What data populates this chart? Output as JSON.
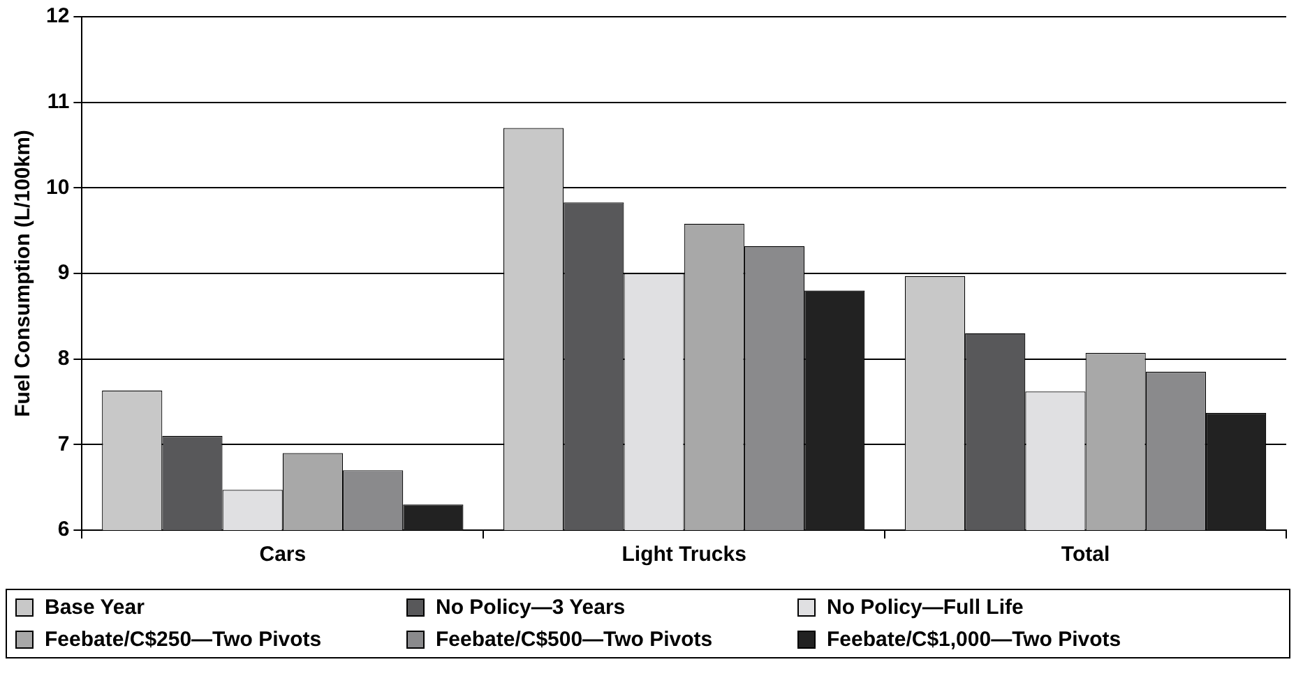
{
  "chart_data": {
    "type": "bar",
    "ylabel": "Fuel Consumption (L/100km)",
    "categories": [
      "Cars",
      "Light Trucks",
      "Total"
    ],
    "series": [
      {
        "name": "Base Year",
        "color": "#c8c8c8",
        "values": [
          7.63,
          10.7,
          8.97
        ]
      },
      {
        "name": "No Policy—3 Years",
        "color": "#58585a",
        "values": [
          7.1,
          9.83,
          8.3
        ]
      },
      {
        "name": "No Policy—Full Life",
        "color": "#e0e0e2",
        "values": [
          6.47,
          9.0,
          7.62
        ]
      },
      {
        "name": "Feebate/C$250—Two Pivots",
        "color": "#a8a8a8",
        "values": [
          6.9,
          9.58,
          8.07
        ]
      },
      {
        "name": "Feebate/C$500—Two Pivots",
        "color": "#8a8a8c",
        "values": [
          6.7,
          9.32,
          7.85
        ]
      },
      {
        "name": "Feebate/C$1,000—Two Pivots",
        "color": "#222222",
        "values": [
          6.3,
          8.8,
          7.37
        ]
      }
    ],
    "ylim": [
      6,
      12
    ],
    "yticks": [
      6,
      7,
      8,
      9,
      10,
      11,
      12
    ],
    "grid": "y",
    "legend": "bottom"
  }
}
